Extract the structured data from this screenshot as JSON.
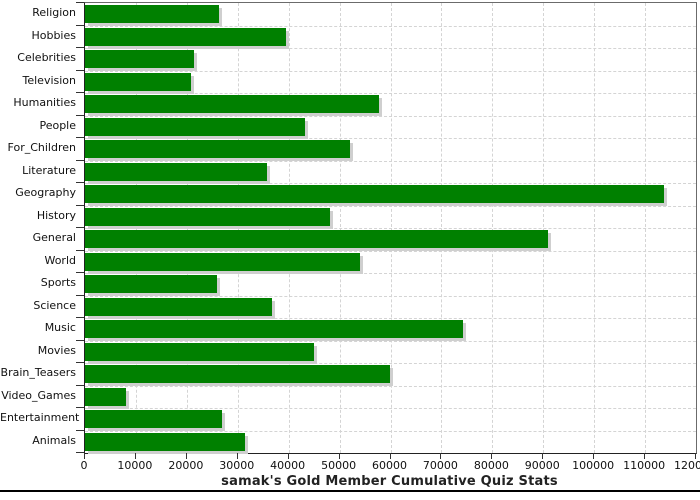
{
  "chart_data": {
    "type": "bar",
    "orientation": "horizontal",
    "title": "samak's Gold Member Cumulative Quiz Stats",
    "categories": [
      "Religion",
      "Hobbies",
      "Celebrities",
      "Television",
      "Humanities",
      "People",
      "For_Children",
      "Literature",
      "Geography",
      "History",
      "General",
      "World",
      "Sports",
      "Science",
      "Music",
      "Movies",
      "Brain_Teasers",
      "Video_Games",
      "Entertainment",
      "Animals"
    ],
    "values": [
      26400,
      39500,
      21500,
      20800,
      57700,
      43300,
      52000,
      35700,
      113700,
      48100,
      90900,
      54100,
      25900,
      36700,
      74300,
      45000,
      59900,
      8100,
      26900,
      31500
    ],
    "xlabel": "",
    "ylabel": "",
    "xlim": [
      0,
      120000
    ],
    "x_tick_step": 10000,
    "x_tick_labels": [
      "0",
      "10000",
      "20000",
      "30000",
      "40000",
      "50000",
      "60000",
      "70000",
      "80000",
      "90000",
      "100000",
      "110000",
      "120000"
    ],
    "grid": "dashed",
    "legend": "none",
    "colors": {
      "bar": "#008000",
      "bar_shadow": "#cfcfcf",
      "gridline": "#d4d4d4",
      "axis": "#222222",
      "text": "#111111",
      "title_text": "#222222",
      "background": "#ffffff"
    }
  }
}
